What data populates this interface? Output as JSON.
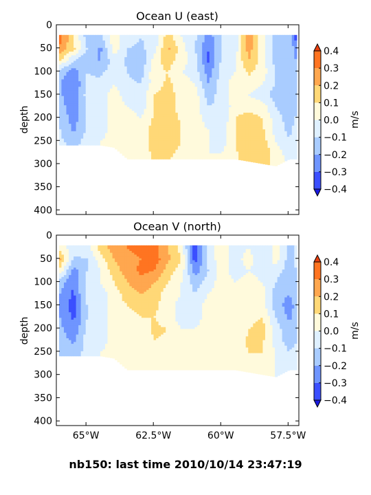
{
  "suptitle": "nb150: last time 2010/10/14 23:47:19",
  "colors": {
    "levels": [
      "#3b4fff",
      "#6f95ff",
      "#a9ccff",
      "#dff0ff",
      "#fffadc",
      "#ffd877",
      "#ffa74f",
      "#ff7421"
    ],
    "under": "#1a1ae0",
    "over": "#e84010",
    "mask": "#ffffff"
  },
  "chart_data": [
    {
      "type": "heatmap",
      "title": "Ocean U (east)",
      "xlabel": "",
      "ylabel": "depth",
      "x_ticks": [
        -65,
        -62.5,
        -60,
        -57.5
      ],
      "x_tick_labels": [],
      "xlim": [
        -66.1,
        -57.1
      ],
      "y_ticks": [
        0,
        50,
        100,
        150,
        200,
        250,
        300,
        350,
        400
      ],
      "y_tick_labels": [
        "0",
        "50",
        "100",
        "150",
        "200",
        "250",
        "300",
        "350",
        "400"
      ],
      "ylim": [
        410,
        0
      ],
      "colorbar": {
        "label": "m/s",
        "levels": [
          -0.4,
          -0.3,
          -0.2,
          -0.1,
          0.0,
          0.1,
          0.2,
          0.3,
          0.4
        ],
        "tick_labels": [
          "0.4",
          "0.3",
          "0.2",
          "0.1",
          "0.0",
          "−0.1",
          "−0.2",
          "−0.3",
          "−0.4"
        ],
        "extend": "both"
      },
      "grid": false,
      "depth_range_m": [
        22,
        305
      ],
      "field_m_per_s": {
        "longitude": [
          -66.0,
          -65.5,
          -65.0,
          -64.5,
          -64.0,
          -63.5,
          -63.0,
          -62.5,
          -62.0,
          -61.5,
          -61.0,
          -60.5,
          -60.0,
          -59.5,
          -59.0,
          -58.5,
          -58.0,
          -57.5,
          -57.2
        ],
        "depth": [
          25,
          50,
          75,
          100,
          125,
          150,
          175,
          200,
          225,
          250,
          275,
          300
        ],
        "bottom_depth": [
          260,
          260,
          260,
          260,
          265,
          290,
          290,
          290,
          290,
          290,
          290,
          290,
          290,
          290,
          295,
          300,
          305,
          290,
          290
        ],
        "values": [
          [
            0.33,
            0.1,
            -0.15,
            -0.12,
            0.05,
            -0.05,
            -0.1,
            -0.05,
            0.15,
            0.0,
            -0.08,
            -0.25,
            -0.1,
            -0.05,
            0.25,
            0.05,
            -0.15,
            -0.1,
            -0.38
          ],
          [
            0.28,
            0.12,
            -0.1,
            -0.22,
            0.05,
            -0.1,
            -0.12,
            -0.05,
            0.22,
            0.05,
            -0.1,
            -0.3,
            -0.1,
            -0.05,
            0.25,
            0.05,
            -0.15,
            -0.1,
            -0.3
          ],
          [
            0.1,
            -0.1,
            -0.2,
            -0.2,
            -0.05,
            -0.12,
            -0.18,
            0.05,
            0.15,
            0.05,
            -0.05,
            -0.32,
            -0.08,
            0.0,
            0.2,
            0.05,
            -0.15,
            -0.15,
            -0.2
          ],
          [
            -0.15,
            -0.25,
            -0.1,
            -0.12,
            -0.05,
            -0.1,
            -0.15,
            0.08,
            0.1,
            0.0,
            -0.05,
            -0.25,
            -0.05,
            0.0,
            0.12,
            0.05,
            -0.1,
            -0.18,
            -0.15
          ],
          [
            -0.2,
            -0.3,
            -0.08,
            -0.08,
            0.0,
            -0.08,
            -0.1,
            0.05,
            0.12,
            0.05,
            0.0,
            -0.2,
            -0.05,
            0.05,
            0.05,
            0.0,
            -0.1,
            -0.2,
            -0.15
          ],
          [
            -0.18,
            -0.3,
            -0.05,
            -0.05,
            0.05,
            -0.05,
            -0.05,
            0.1,
            0.15,
            0.05,
            0.05,
            -0.15,
            -0.05,
            0.05,
            0.0,
            -0.05,
            -0.15,
            -0.2,
            -0.12
          ],
          [
            -0.15,
            -0.28,
            -0.08,
            -0.05,
            0.05,
            0.0,
            -0.05,
            0.1,
            0.15,
            0.05,
            0.05,
            -0.1,
            -0.08,
            0.05,
            0.05,
            0.05,
            -0.1,
            -0.18,
            -0.1
          ],
          [
            -0.12,
            -0.25,
            -0.08,
            -0.05,
            0.05,
            0.05,
            0.0,
            0.12,
            0.18,
            0.08,
            0.05,
            -0.05,
            -0.08,
            0.1,
            0.15,
            0.1,
            -0.05,
            -0.15,
            -0.08
          ],
          [
            -0.1,
            -0.22,
            -0.08,
            -0.05,
            0.05,
            0.05,
            0.05,
            0.15,
            0.18,
            0.1,
            0.05,
            0.0,
            -0.05,
            0.1,
            0.18,
            0.12,
            -0.05,
            -0.12,
            -0.05
          ],
          [
            -0.08,
            -0.15,
            -0.05,
            0.0,
            0.05,
            0.05,
            0.05,
            0.15,
            0.15,
            0.1,
            0.05,
            0.0,
            -0.05,
            0.1,
            0.2,
            0.15,
            0.0,
            -0.1,
            -0.05
          ],
          [
            -0.05,
            -0.1,
            -0.05,
            0.0,
            0.05,
            0.05,
            0.05,
            0.12,
            0.12,
            0.08,
            0.05,
            0.0,
            0.0,
            0.08,
            0.2,
            0.18,
            0.05,
            -0.05,
            0.0
          ],
          [
            -0.05,
            -0.08,
            0.0,
            0.0,
            0.05,
            0.05,
            0.05,
            0.1,
            0.1,
            0.05,
            0.05,
            0.0,
            0.0,
            0.05,
            0.18,
            0.15,
            0.05,
            0.0,
            0.0
          ]
        ]
      }
    },
    {
      "type": "heatmap",
      "title": "Ocean V (north)",
      "xlabel": "",
      "ylabel": "depth",
      "x_ticks": [
        -65,
        -62.5,
        -60,
        -57.5
      ],
      "x_tick_labels": [
        "65°W",
        "62.5°W",
        "60°W",
        "57.5°W"
      ],
      "xlim": [
        -66.1,
        -57.1
      ],
      "y_ticks": [
        0,
        50,
        100,
        150,
        200,
        250,
        300,
        350,
        400
      ],
      "y_tick_labels": [
        "0",
        "50",
        "100",
        "150",
        "200",
        "250",
        "300",
        "350",
        "400"
      ],
      "ylim": [
        410,
        0
      ],
      "colorbar": {
        "label": "m/s",
        "levels": [
          -0.4,
          -0.3,
          -0.2,
          -0.1,
          0.0,
          0.1,
          0.2,
          0.3,
          0.4
        ],
        "tick_labels": [
          "0.4",
          "0.3",
          "0.2",
          "0.1",
          "0.0",
          "−0.1",
          "−0.2",
          "−0.3",
          "−0.4"
        ],
        "extend": "both"
      },
      "grid": false,
      "depth_range_m": [
        22,
        305
      ],
      "field_m_per_s": {
        "longitude": [
          -66.0,
          -65.5,
          -65.0,
          -64.5,
          -64.0,
          -63.5,
          -63.0,
          -62.5,
          -62.0,
          -61.5,
          -61.0,
          -60.5,
          -60.0,
          -59.5,
          -59.0,
          -58.5,
          -58.0,
          -57.5,
          -57.2
        ],
        "depth": [
          25,
          50,
          75,
          100,
          125,
          150,
          175,
          200,
          225,
          250,
          275,
          300
        ],
        "bottom_depth": [
          260,
          260,
          260,
          260,
          265,
          290,
          290,
          290,
          290,
          290,
          290,
          290,
          290,
          290,
          295,
          300,
          305,
          290,
          290
        ],
        "values": [
          [
            0.05,
            -0.05,
            -0.05,
            0.15,
            0.25,
            0.3,
            0.32,
            0.35,
            0.2,
            0.05,
            -0.38,
            -0.05,
            0.05,
            -0.05,
            0.0,
            -0.1,
            0.05,
            -0.15,
            -0.05
          ],
          [
            0.2,
            -0.12,
            -0.1,
            0.05,
            0.2,
            0.28,
            0.3,
            0.35,
            0.22,
            0.1,
            -0.35,
            -0.05,
            0.05,
            -0.05,
            0.05,
            -0.1,
            0.05,
            -0.15,
            -0.05
          ],
          [
            0.05,
            -0.25,
            -0.1,
            0.0,
            0.15,
            0.25,
            0.32,
            0.3,
            0.15,
            0.05,
            -0.25,
            -0.1,
            0.05,
            -0.05,
            0.0,
            -0.05,
            -0.05,
            -0.15,
            -0.1
          ],
          [
            -0.15,
            -0.3,
            -0.05,
            0.0,
            0.1,
            0.2,
            0.28,
            0.2,
            0.1,
            0.0,
            -0.15,
            -0.05,
            0.05,
            0.0,
            0.05,
            0.0,
            -0.1,
            -0.2,
            -0.1
          ],
          [
            -0.2,
            -0.32,
            -0.05,
            -0.05,
            0.05,
            0.15,
            0.2,
            0.15,
            0.05,
            0.0,
            -0.1,
            0.0,
            0.05,
            0.0,
            0.05,
            0.05,
            -0.15,
            -0.2,
            -0.12
          ],
          [
            -0.22,
            -0.35,
            -0.1,
            -0.05,
            0.05,
            0.1,
            0.12,
            0.12,
            0.05,
            -0.05,
            -0.05,
            0.05,
            0.05,
            0.0,
            0.0,
            0.05,
            -0.15,
            -0.25,
            -0.15
          ],
          [
            -0.2,
            -0.32,
            -0.1,
            -0.05,
            0.05,
            0.08,
            0.1,
            0.1,
            0.05,
            -0.05,
            -0.05,
            0.05,
            0.05,
            0.0,
            0.05,
            0.1,
            -0.1,
            -0.22,
            -0.15
          ],
          [
            -0.18,
            -0.28,
            -0.08,
            -0.05,
            0.05,
            0.05,
            0.05,
            0.12,
            0.1,
            0.0,
            0.0,
            0.05,
            0.05,
            0.0,
            0.1,
            0.15,
            -0.05,
            -0.18,
            -0.1
          ],
          [
            -0.15,
            -0.22,
            -0.05,
            -0.05,
            0.05,
            0.05,
            0.05,
            0.1,
            0.08,
            0.0,
            0.0,
            0.05,
            0.05,
            0.05,
            0.12,
            0.12,
            -0.05,
            -0.15,
            -0.1
          ],
          [
            -0.12,
            -0.18,
            -0.05,
            0.0,
            0.05,
            0.05,
            0.05,
            0.08,
            0.05,
            0.0,
            0.0,
            0.05,
            0.05,
            0.05,
            0.1,
            0.1,
            0.0,
            -0.1,
            -0.05
          ],
          [
            -0.1,
            -0.12,
            -0.05,
            0.0,
            0.05,
            0.05,
            0.05,
            0.05,
            0.05,
            0.0,
            0.0,
            0.05,
            0.05,
            0.05,
            0.08,
            0.05,
            0.0,
            -0.05,
            -0.05
          ],
          [
            -0.08,
            -0.1,
            -0.05,
            0.0,
            0.05,
            0.05,
            0.05,
            0.05,
            0.05,
            0.0,
            0.0,
            0.05,
            0.05,
            0.05,
            0.05,
            0.05,
            0.0,
            -0.05,
            0.0
          ]
        ]
      }
    }
  ]
}
